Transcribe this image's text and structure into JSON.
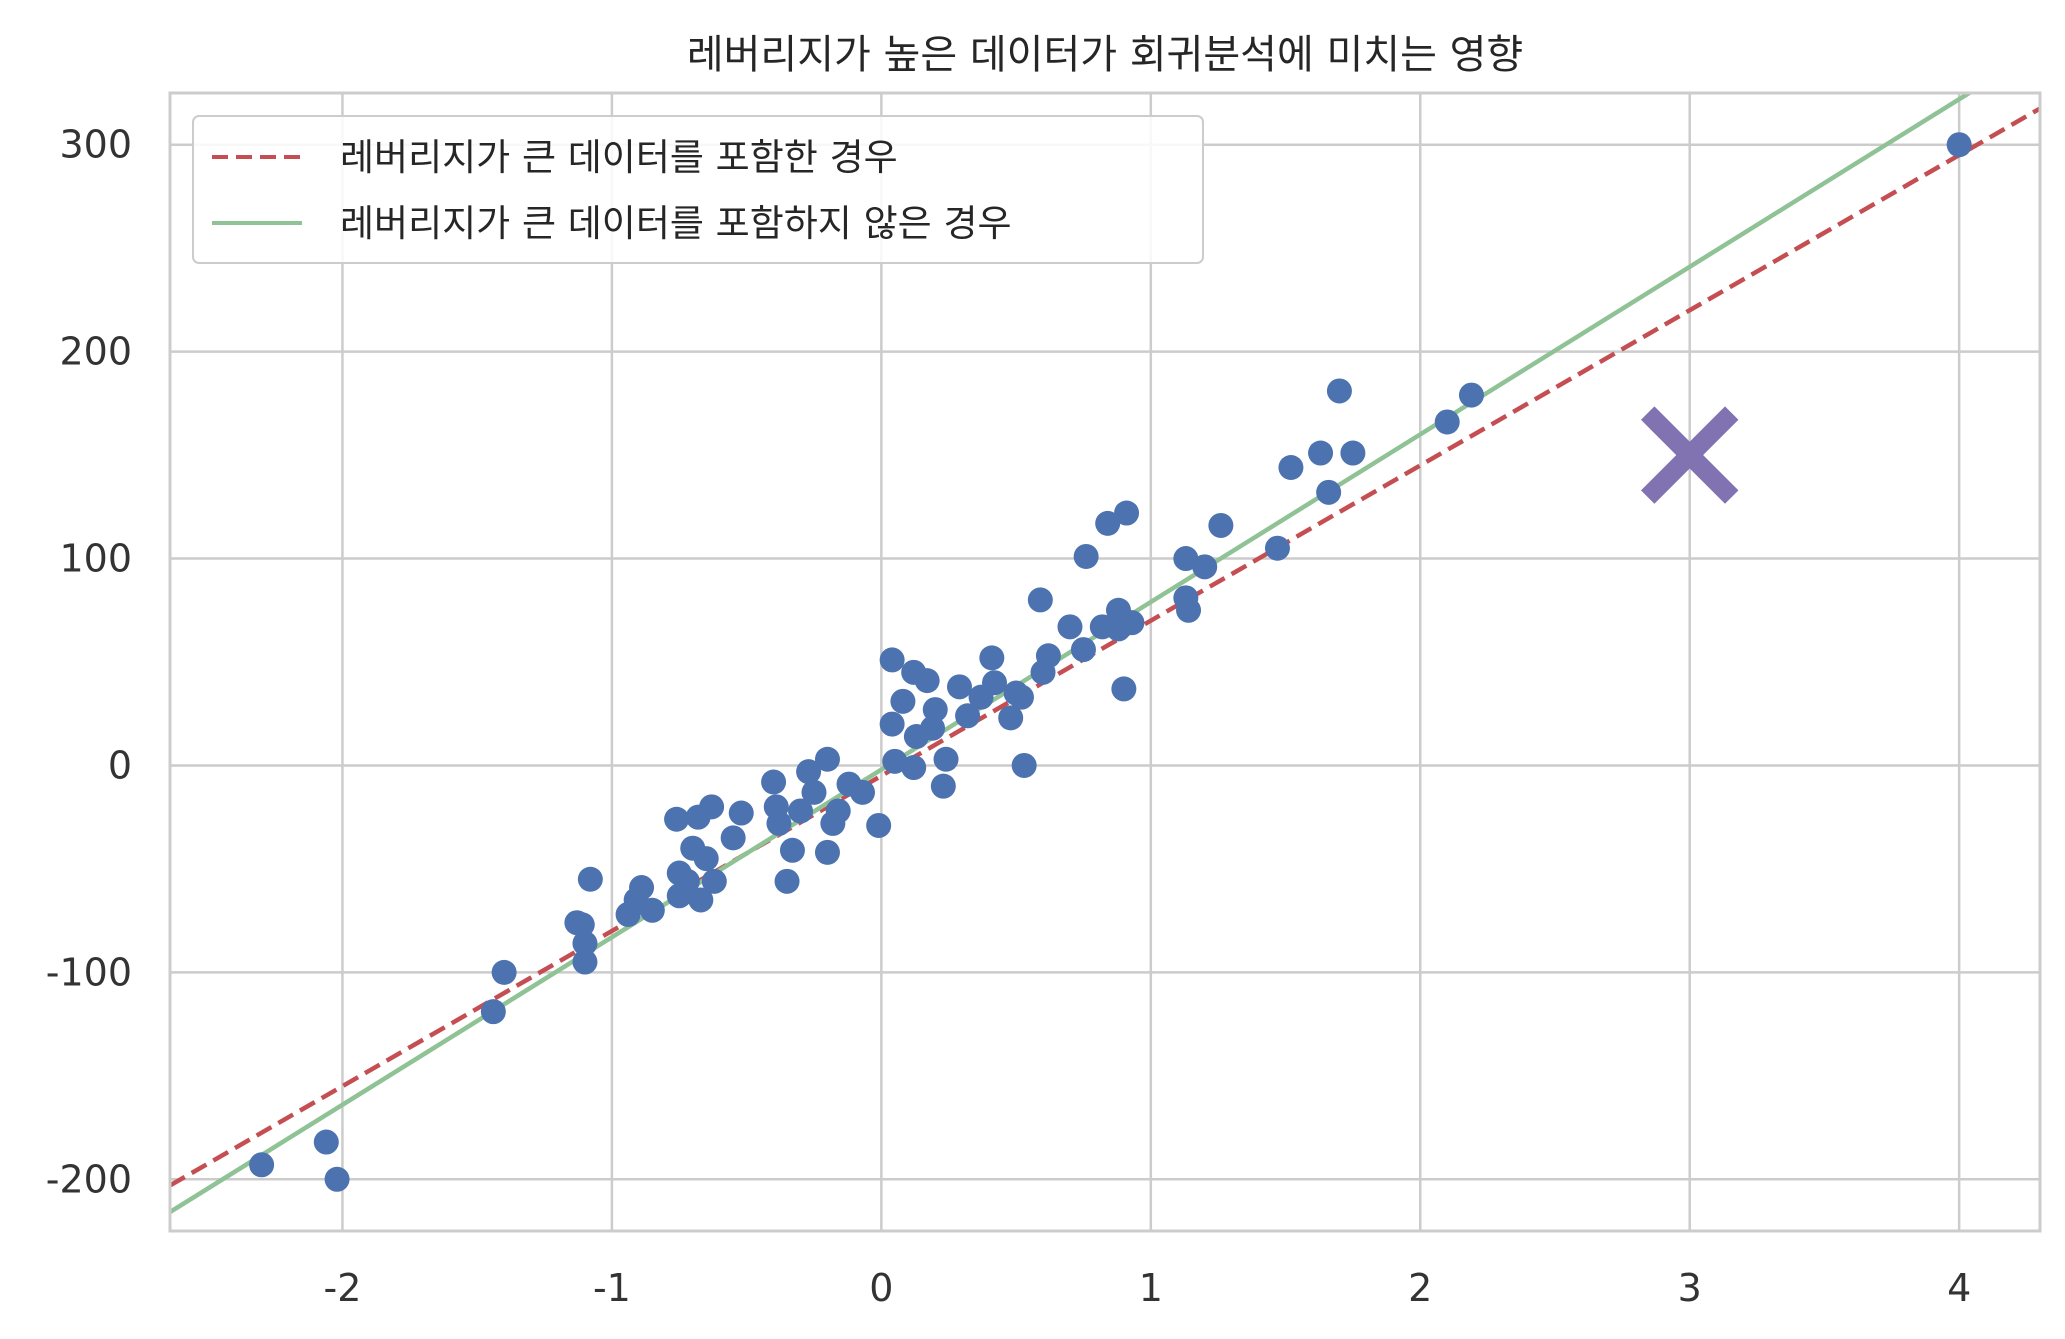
{
  "chart_data": {
    "type": "scatter",
    "title": "레버리지가 높은 데이터가 회귀분석에 미치는 영향",
    "xlabel": "",
    "ylabel": "",
    "xlim": [
      -2.64,
      4.3
    ],
    "ylim": [
      -225,
      325
    ],
    "xticks": [
      -2,
      -1,
      0,
      1,
      2,
      3,
      4
    ],
    "xtick_labels": [
      "-2",
      "-1",
      "0",
      "1",
      "2",
      "3",
      "4"
    ],
    "yticks": [
      -200,
      -100,
      0,
      100,
      200,
      300
    ],
    "ytick_labels": [
      "-200",
      "-100",
      "0",
      "100",
      "200",
      "300"
    ],
    "grid": true,
    "legend_position": "top-left",
    "colors": {
      "points": "#4c72b0",
      "line_with_leverage": "#c44e52",
      "line_without_leverage": "#8fc294",
      "marker_x": "#8172b2",
      "grid": "#cccccc",
      "axes": "#cccccc"
    },
    "series": [
      {
        "kind": "scatter",
        "points": [
          [
            -2.3,
            -193
          ],
          [
            -2.06,
            -182
          ],
          [
            -2.02,
            -200
          ],
          [
            -1.44,
            -119
          ],
          [
            -1.4,
            -100
          ],
          [
            -1.13,
            -76
          ],
          [
            -1.11,
            -77
          ],
          [
            -1.1,
            -86
          ],
          [
            -1.1,
            -95
          ],
          [
            -1.08,
            -55
          ],
          [
            -0.94,
            -72
          ],
          [
            -0.91,
            -65
          ],
          [
            -0.89,
            -59
          ],
          [
            -0.85,
            -70
          ],
          [
            -0.76,
            -26
          ],
          [
            -0.75,
            -52
          ],
          [
            -0.75,
            -63
          ],
          [
            -0.72,
            -56
          ],
          [
            -0.7,
            -40
          ],
          [
            -0.68,
            -25
          ],
          [
            -0.67,
            -65
          ],
          [
            -0.65,
            -45
          ],
          [
            -0.63,
            -20
          ],
          [
            -0.62,
            -56
          ],
          [
            -0.55,
            -35
          ],
          [
            -0.52,
            -23
          ],
          [
            -0.4,
            -8
          ],
          [
            -0.39,
            -20
          ],
          [
            -0.38,
            -28
          ],
          [
            -0.35,
            -56
          ],
          [
            -0.33,
            -41
          ],
          [
            -0.3,
            -22
          ],
          [
            -0.27,
            -3
          ],
          [
            -0.25,
            -13
          ],
          [
            -0.2,
            -42
          ],
          [
            -0.2,
            3
          ],
          [
            -0.18,
            -28
          ],
          [
            -0.16,
            -22
          ],
          [
            -0.12,
            -9
          ],
          [
            -0.07,
            -13
          ],
          [
            -0.01,
            -29
          ],
          [
            0.04,
            51
          ],
          [
            0.04,
            20
          ],
          [
            0.05,
            2
          ],
          [
            0.08,
            31
          ],
          [
            0.12,
            45
          ],
          [
            0.12,
            -1
          ],
          [
            0.13,
            14
          ],
          [
            0.17,
            41
          ],
          [
            0.19,
            18
          ],
          [
            0.2,
            27
          ],
          [
            0.23,
            -10
          ],
          [
            0.24,
            3
          ],
          [
            0.29,
            38
          ],
          [
            0.32,
            24
          ],
          [
            0.37,
            33
          ],
          [
            0.41,
            52
          ],
          [
            0.42,
            40
          ],
          [
            0.48,
            23
          ],
          [
            0.5,
            35
          ],
          [
            0.52,
            33
          ],
          [
            0.53,
            0
          ],
          [
            0.59,
            80
          ],
          [
            0.6,
            45
          ],
          [
            0.62,
            53
          ],
          [
            0.7,
            67
          ],
          [
            0.75,
            56
          ],
          [
            0.76,
            101
          ],
          [
            0.82,
            67
          ],
          [
            0.84,
            117
          ],
          [
            0.88,
            75
          ],
          [
            0.88,
            66
          ],
          [
            0.9,
            37
          ],
          [
            0.91,
            122
          ],
          [
            0.93,
            69
          ],
          [
            1.13,
            81
          ],
          [
            1.13,
            100
          ],
          [
            1.14,
            75
          ],
          [
            1.2,
            96
          ],
          [
            1.26,
            116
          ],
          [
            1.47,
            105
          ],
          [
            1.52,
            144
          ],
          [
            1.63,
            151
          ],
          [
            1.66,
            132
          ],
          [
            1.7,
            181
          ],
          [
            1.75,
            151
          ],
          [
            2.1,
            166
          ],
          [
            2.19,
            179
          ],
          [
            4.0,
            300
          ]
        ]
      },
      {
        "kind": "line",
        "name": "레버리지가 큰 데이터를 포함한 경우",
        "style": "dashed",
        "slope": 75,
        "intercept": -5
      },
      {
        "kind": "line",
        "name": "레버리지가 큰 데이터를 포함하지 않은 경우",
        "style": "solid",
        "slope": 81,
        "intercept": -2
      },
      {
        "kind": "marker",
        "shape": "x",
        "points": [
          [
            3.0,
            150
          ]
        ]
      }
    ]
  }
}
